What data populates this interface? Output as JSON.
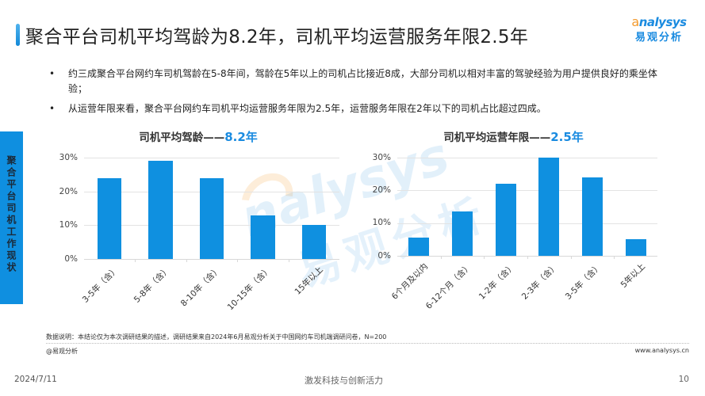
{
  "header": {
    "title": "聚合平台司机平均驾龄为8.2年，司机平均运营服务年限2.5年",
    "logo_en_prefix": "a",
    "logo_en": "nalysys",
    "logo_cn": "易观分析"
  },
  "bullets": [
    {
      "marker": "•",
      "text": "约三成聚合平台网约车司机驾龄在5-8年间，驾龄在5年以上的司机占比接近8成，大部分司机以相对丰富的驾驶经验为用户提供良好的乘坐体验；"
    },
    {
      "marker": "•",
      "text": "从运营年限来看，聚合平台网约车司机平均运营服务年限为2.5年，运营服务年限在2年以下的司机占比超过四成。"
    }
  ],
  "side_tab": {
    "label": "聚合平台司机工作现状"
  },
  "watermark": {
    "en": "nalysys",
    "cn": "易观分析"
  },
  "chart_data": [
    {
      "type": "bar",
      "title": "司机平均驾龄——8.2年",
      "title_prefix": "司机平均驾龄——",
      "title_highlight": "8.2年",
      "categories": [
        "3-5年（含）",
        "5-8年（含）",
        "8-10年（含）",
        "10-15年（含）",
        "15年以上"
      ],
      "values": [
        24,
        29,
        24,
        13,
        10
      ],
      "unit": "%",
      "xlabel": "",
      "ylabel": "",
      "ylim": [
        0,
        30
      ],
      "yticks": [
        "30%",
        "20%",
        "10%",
        "0%"
      ],
      "grid": true,
      "color": "#0f90e0"
    },
    {
      "type": "bar",
      "title": "司机平均运营年限——2.5年",
      "title_prefix": "司机平均运营年限——",
      "title_highlight": "2.5年",
      "categories": [
        "6个月及以内",
        "6-12个月（含）",
        "1-2年（含）",
        "2-3年（含）",
        "3-5年（含）",
        "5年以上"
      ],
      "values": [
        5.5,
        13.5,
        22,
        30,
        24,
        5
      ],
      "unit": "%",
      "xlabel": "",
      "ylabel": "",
      "ylim": [
        0,
        30
      ],
      "yticks": [
        "30%",
        "20%",
        "10%",
        "0%"
      ],
      "grid": true,
      "color": "#0f90e0"
    }
  ],
  "footer": {
    "note": "数据说明：本结论仅为本次调研结果的描述，调研结果来自2024年6月易观分析关于中国网约车司机端调研问卷，N=200",
    "source": "@易观分析",
    "website": "www.analysys.cn",
    "date": "2024/7/11",
    "slogan": "激发科技与创新活力",
    "page_number": "10"
  },
  "colors": {
    "accent": "#1a8be0",
    "bar": "#0f90e0",
    "logo_orange": "#f39a2e",
    "side_tab": "#0f8fe0"
  }
}
